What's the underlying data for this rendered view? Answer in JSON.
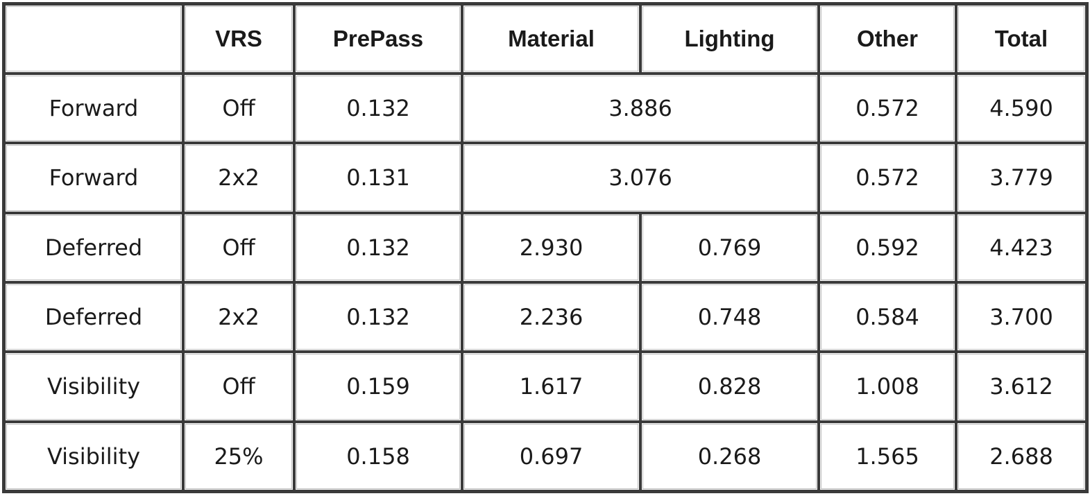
{
  "table": {
    "headers": {
      "corner": "",
      "vrs": "VRS",
      "prepass": "PrePass",
      "material": "Material",
      "lighting": "Lighting",
      "other": "Other",
      "total": "Total"
    },
    "rows": [
      {
        "method": "Forward",
        "vrs": "Off",
        "prepass": "0.132",
        "material_lighting": "3.886",
        "other": "0.572",
        "total": "4.590"
      },
      {
        "method": "Forward",
        "vrs": "2x2",
        "prepass": "0.131",
        "material_lighting": "3.076",
        "other": "0.572",
        "total": "3.779"
      },
      {
        "method": "Deferred",
        "vrs": "Off",
        "prepass": "0.132",
        "material": "2.930",
        "lighting": "0.769",
        "other": "0.592",
        "total": "4.423"
      },
      {
        "method": "Deferred",
        "vrs": "2x2",
        "prepass": "0.132",
        "material": "2.236",
        "lighting": "0.748",
        "other": "0.584",
        "total": "3.700"
      },
      {
        "method": "Visibility",
        "vrs": "Off",
        "prepass": "0.159",
        "material": "1.617",
        "lighting": "0.828",
        "other": "1.008",
        "total": "3.612"
      },
      {
        "method": "Visibility",
        "vrs": "25%",
        "prepass": "0.158",
        "material": "0.697",
        "lighting": "0.268",
        "other": "1.565",
        "total": "2.688"
      }
    ]
  }
}
